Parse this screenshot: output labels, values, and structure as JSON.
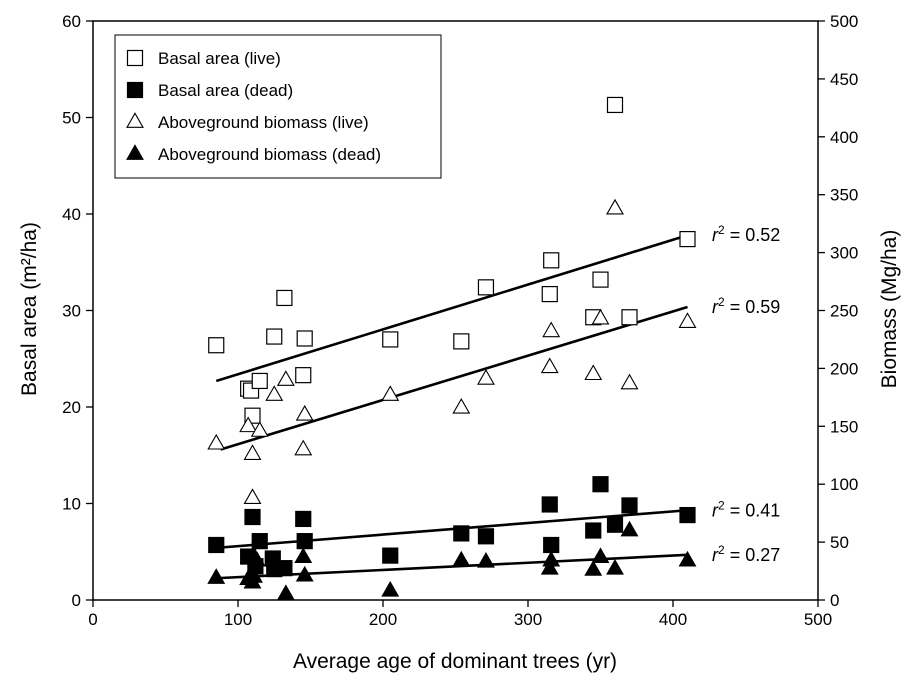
{
  "chart_data": {
    "type": "scatter",
    "xlabel": "Average age of dominant trees (yr)",
    "ylabel_left": "Basal area (m²/ha)",
    "ylabel_right": "Biomass (Mg/ha)",
    "xlim": [
      0,
      500
    ],
    "ylim_left": [
      0,
      60
    ],
    "ylim_right": [
      0,
      500
    ],
    "x_ticks": [
      0,
      100,
      200,
      300,
      400,
      500
    ],
    "y_ticks_left": [
      0,
      10,
      20,
      30,
      40,
      50,
      60
    ],
    "y_ticks_right": [
      0,
      50,
      100,
      150,
      200,
      250,
      300,
      350,
      400,
      450,
      500
    ],
    "grid": false,
    "legend_position": "top-left",
    "series": [
      {
        "name": "Basal area (live)",
        "marker": "square-open",
        "axis": "left",
        "points": [
          [
            85,
            26.4
          ],
          [
            107,
            21.9
          ],
          [
            109,
            21.7
          ],
          [
            110,
            19.1
          ],
          [
            115,
            22.7
          ],
          [
            125,
            27.3
          ],
          [
            132,
            31.3
          ],
          [
            145,
            23.3
          ],
          [
            146,
            27.1
          ],
          [
            205,
            27.0
          ],
          [
            254,
            26.8
          ],
          [
            271,
            32.4
          ],
          [
            315,
            31.7
          ],
          [
            316,
            35.2
          ],
          [
            345,
            29.3
          ],
          [
            350,
            33.2
          ],
          [
            360,
            51.3
          ],
          [
            370,
            29.3
          ],
          [
            410,
            37.4
          ]
        ],
        "fit": {
          "x": [
            85,
            410
          ],
          "y": [
            22.7,
            37.8
          ],
          "r2_label": "r² = 0.52"
        }
      },
      {
        "name": "Basal area (dead)",
        "marker": "square-filled",
        "axis": "left",
        "points": [
          [
            85,
            5.7
          ],
          [
            107,
            4.5
          ],
          [
            110,
            8.6
          ],
          [
            112,
            3.5
          ],
          [
            115,
            6.1
          ],
          [
            124,
            4.3
          ],
          [
            125,
            3.2
          ],
          [
            132,
            3.3
          ],
          [
            145,
            8.4
          ],
          [
            146,
            6.1
          ],
          [
            205,
            4.6
          ],
          [
            254,
            6.9
          ],
          [
            271,
            6.6
          ],
          [
            315,
            9.9
          ],
          [
            316,
            5.7
          ],
          [
            345,
            7.2
          ],
          [
            350,
            12.0
          ],
          [
            360,
            7.8
          ],
          [
            370,
            9.8
          ],
          [
            410,
            8.8
          ]
        ],
        "fit": {
          "x": [
            85,
            410
          ],
          "y": [
            5.4,
            9.3
          ],
          "r2_label": "r² = 0.41"
        }
      },
      {
        "name": "Aboveground biomass (live)",
        "marker": "triangle-open",
        "axis": "right",
        "points": [
          [
            85,
            135
          ],
          [
            107,
            150
          ],
          [
            110,
            126
          ],
          [
            110,
            88
          ],
          [
            115,
            146
          ],
          [
            125,
            177
          ],
          [
            133,
            190
          ],
          [
            145,
            130
          ],
          [
            146,
            160
          ],
          [
            205,
            177
          ],
          [
            254,
            166
          ],
          [
            271,
            191
          ],
          [
            315,
            201
          ],
          [
            316,
            232
          ],
          [
            345,
            195
          ],
          [
            350,
            243
          ],
          [
            360,
            338
          ],
          [
            370,
            187
          ],
          [
            410,
            240
          ]
        ],
        "fit": {
          "x": [
            88,
            410
          ],
          "y": [
            130,
            253
          ],
          "r2_label": "r² = 0.59"
        }
      },
      {
        "name": "Aboveground biomass (dead)",
        "marker": "triangle-filled",
        "axis": "right",
        "points": [
          [
            85,
            19
          ],
          [
            107,
            18
          ],
          [
            110,
            15
          ],
          [
            111,
            20
          ],
          [
            113,
            34
          ],
          [
            127,
            30
          ],
          [
            133,
            5
          ],
          [
            145,
            37
          ],
          [
            146,
            21
          ],
          [
            205,
            8
          ],
          [
            254,
            34
          ],
          [
            271,
            33
          ],
          [
            315,
            27
          ],
          [
            316,
            34
          ],
          [
            345,
            26
          ],
          [
            350,
            37
          ],
          [
            360,
            27
          ],
          [
            370,
            60
          ],
          [
            410,
            34
          ]
        ],
        "fit": {
          "x": [
            88,
            410
          ],
          "y": [
            19,
            39
          ],
          "r2_label": "r² = 0.27"
        }
      }
    ]
  }
}
